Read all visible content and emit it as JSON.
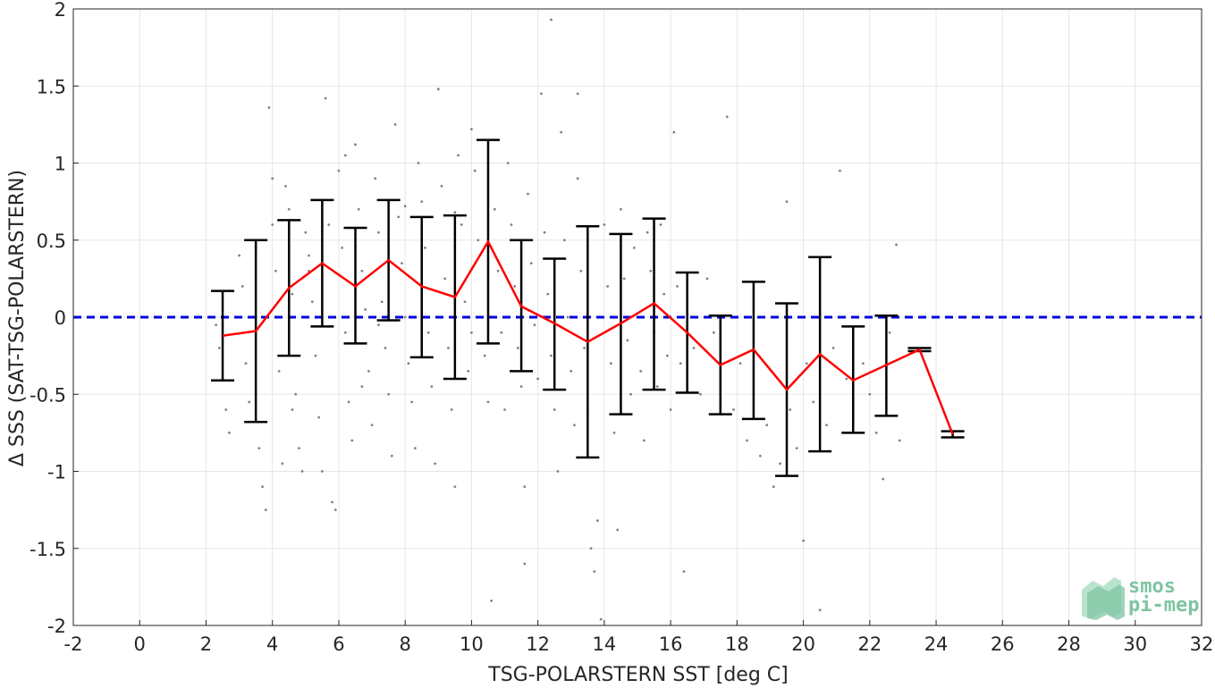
{
  "colors": {
    "scatter": "#808080",
    "mean_line": "#ff0000",
    "error_bar": "#000000",
    "zero_line": "#0000dd",
    "grid": "#e6e6e6",
    "logo_primary": "#7fc4a2",
    "logo_secondary": "#b9e3cd"
  },
  "logo": {
    "line1": "smos",
    "line2": "pi-mep"
  },
  "chart_data": {
    "type": "scatter",
    "title": "",
    "xlabel": "TSG-POLARSTERN SST [deg C]",
    "ylabel": "Δ SSS (SAT-TSG-POLARSTERN)",
    "xlim": [
      -2,
      32
    ],
    "ylim": [
      -2,
      2
    ],
    "xticks": [
      -2,
      0,
      2,
      4,
      6,
      8,
      10,
      12,
      14,
      16,
      18,
      20,
      22,
      24,
      26,
      28,
      30,
      32
    ],
    "yticks": [
      -2,
      -1.5,
      -1,
      -0.5,
      0,
      0.5,
      1,
      1.5,
      2
    ],
    "xtick_labels": [
      "-2",
      "0",
      "2",
      "4",
      "6",
      "8",
      "10",
      "12",
      "14",
      "16",
      "18",
      "20",
      "22",
      "24",
      "26",
      "28",
      "30",
      "32"
    ],
    "ytick_labels": [
      "-2",
      "-1.5",
      "-1",
      "-0.5",
      "0",
      "0.5",
      "1",
      "1.5",
      "2"
    ],
    "grid": true,
    "reference_line": {
      "y": 0,
      "style": "dashed"
    },
    "series": [
      {
        "kind": "binned_mean_with_std",
        "x": [
          2.5,
          3.5,
          4.5,
          5.5,
          6.5,
          7.5,
          8.5,
          9.5,
          10.5,
          11.5,
          12.5,
          13.5,
          14.5,
          15.5,
          16.5,
          17.5,
          18.5,
          19.5,
          20.5,
          21.5,
          22.5,
          23.5,
          24.5
        ],
        "mean": [
          -0.12,
          -0.09,
          0.19,
          0.35,
          0.2,
          0.37,
          0.2,
          0.13,
          0.49,
          0.07,
          -0.04,
          -0.16,
          -0.04,
          0.09,
          -0.1,
          -0.31,
          -0.21,
          -0.47,
          -0.24,
          -0.41,
          -0.31,
          -0.21,
          -0.76
        ],
        "upper": [
          0.17,
          0.5,
          0.63,
          0.76,
          0.58,
          0.76,
          0.65,
          0.66,
          1.15,
          0.5,
          0.38,
          0.59,
          0.54,
          0.64,
          0.29,
          0.01,
          0.23,
          0.09,
          0.39,
          -0.06,
          0.01,
          -0.2,
          -0.74
        ],
        "lower": [
          -0.41,
          -0.68,
          -0.25,
          -0.06,
          -0.17,
          -0.02,
          -0.26,
          -0.4,
          -0.17,
          -0.35,
          -0.47,
          -0.91,
          -0.63,
          -0.47,
          -0.49,
          -0.63,
          -0.66,
          -1.03,
          -0.87,
          -0.75,
          -0.64,
          -0.22,
          -0.78
        ]
      }
    ],
    "scatter_points": [
      [
        2.3,
        -0.05
      ],
      [
        2.4,
        -0.2
      ],
      [
        2.6,
        -0.6
      ],
      [
        2.7,
        -0.75
      ],
      [
        3.0,
        0.4
      ],
      [
        3.1,
        0.2
      ],
      [
        3.2,
        -0.3
      ],
      [
        3.3,
        -0.55
      ],
      [
        3.5,
        0.45
      ],
      [
        3.6,
        -0.85
      ],
      [
        3.7,
        -1.1
      ],
      [
        3.8,
        -1.25
      ],
      [
        3.9,
        1.36
      ],
      [
        4.0,
        0.9
      ],
      [
        4.0,
        0.6
      ],
      [
        4.1,
        0.3
      ],
      [
        4.2,
        -0.35
      ],
      [
        4.3,
        -0.95
      ],
      [
        4.4,
        0.85
      ],
      [
        4.5,
        0.7
      ],
      [
        4.6,
        0.15
      ],
      [
        4.7,
        -0.5
      ],
      [
        4.8,
        -0.85
      ],
      [
        4.9,
        -1.0
      ],
      [
        5.0,
        0.55
      ],
      [
        5.1,
        0.4
      ],
      [
        5.2,
        0.1
      ],
      [
        5.3,
        -0.25
      ],
      [
        5.4,
        -0.65
      ],
      [
        5.5,
        -1.0
      ],
      [
        5.6,
        1.42
      ],
      [
        5.7,
        0.6
      ],
      [
        5.8,
        -1.2
      ],
      [
        5.9,
        -1.25
      ],
      [
        6.0,
        0.95
      ],
      [
        6.1,
        0.45
      ],
      [
        6.2,
        -0.1
      ],
      [
        6.3,
        -0.55
      ],
      [
        6.4,
        -0.8
      ],
      [
        6.5,
        1.12
      ],
      [
        6.6,
        0.7
      ],
      [
        6.7,
        0.3
      ],
      [
        6.8,
        0.05
      ],
      [
        6.9,
        -0.35
      ],
      [
        7.0,
        -0.7
      ],
      [
        7.1,
        0.9
      ],
      [
        7.2,
        0.55
      ],
      [
        7.3,
        0.1
      ],
      [
        7.4,
        -0.2
      ],
      [
        7.5,
        -0.5
      ],
      [
        7.6,
        -0.9
      ],
      [
        7.7,
        1.25
      ],
      [
        7.8,
        0.65
      ],
      [
        7.9,
        0.35
      ],
      [
        8.0,
        0.0
      ],
      [
        8.1,
        -0.3
      ],
      [
        8.2,
        -0.55
      ],
      [
        8.3,
        -0.85
      ],
      [
        8.4,
        1.0
      ],
      [
        8.5,
        0.75
      ],
      [
        8.6,
        0.45
      ],
      [
        8.7,
        -0.1
      ],
      [
        8.8,
        -0.45
      ],
      [
        8.9,
        -0.95
      ],
      [
        9.0,
        1.48
      ],
      [
        9.1,
        0.85
      ],
      [
        9.2,
        0.25
      ],
      [
        9.3,
        -0.2
      ],
      [
        9.4,
        -0.6
      ],
      [
        9.5,
        -1.1
      ],
      [
        9.6,
        1.05
      ],
      [
        9.7,
        0.6
      ],
      [
        9.8,
        0.1
      ],
      [
        9.9,
        -0.35
      ],
      [
        10.0,
        1.22
      ],
      [
        10.1,
        0.95
      ],
      [
        10.2,
        0.5
      ],
      [
        10.3,
        0.0
      ],
      [
        10.4,
        -0.25
      ],
      [
        10.5,
        -0.55
      ],
      [
        10.6,
        -1.84
      ],
      [
        10.7,
        0.7
      ],
      [
        10.8,
        0.3
      ],
      [
        10.9,
        -0.1
      ],
      [
        11.0,
        -0.6
      ],
      [
        11.1,
        1.0
      ],
      [
        11.2,
        0.6
      ],
      [
        11.3,
        0.2
      ],
      [
        11.4,
        -0.2
      ],
      [
        11.5,
        -0.45
      ],
      [
        11.6,
        -1.1
      ],
      [
        11.7,
        0.8
      ],
      [
        11.8,
        0.35
      ],
      [
        11.9,
        -0.05
      ],
      [
        12.0,
        -0.4
      ],
      [
        12.1,
        1.45
      ],
      [
        12.2,
        0.55
      ],
      [
        12.3,
        0.15
      ],
      [
        12.4,
        -0.25
      ],
      [
        12.5,
        -0.6
      ],
      [
        12.6,
        -1.0
      ],
      [
        12.7,
        1.2
      ],
      [
        12.8,
        0.5
      ],
      [
        12.9,
        0.0
      ],
      [
        13.0,
        -0.35
      ],
      [
        13.1,
        -0.7
      ],
      [
        13.2,
        0.9
      ],
      [
        13.3,
        0.3
      ],
      [
        13.4,
        -0.2
      ],
      [
        13.5,
        -0.6
      ],
      [
        13.6,
        -1.5
      ],
      [
        13.7,
        -1.65
      ],
      [
        13.8,
        -1.32
      ],
      [
        13.9,
        -1.96
      ],
      [
        14.0,
        0.6
      ],
      [
        14.1,
        0.2
      ],
      [
        14.2,
        -0.3
      ],
      [
        14.3,
        -0.75
      ],
      [
        14.4,
        -1.38
      ],
      [
        14.5,
        0.7
      ],
      [
        14.6,
        0.25
      ],
      [
        14.7,
        -0.15
      ],
      [
        14.8,
        -0.5
      ],
      [
        14.9,
        0.45
      ],
      [
        15.0,
        0.0
      ],
      [
        15.1,
        -0.35
      ],
      [
        15.2,
        -0.8
      ],
      [
        15.3,
        0.55
      ],
      [
        15.4,
        0.3
      ],
      [
        15.5,
        -0.1
      ],
      [
        15.6,
        -0.45
      ],
      [
        15.7,
        0.6
      ],
      [
        15.8,
        0.15
      ],
      [
        15.9,
        -0.25
      ],
      [
        16.0,
        -0.6
      ],
      [
        16.1,
        1.2
      ],
      [
        16.2,
        0.2
      ],
      [
        16.3,
        -0.3
      ],
      [
        16.4,
        -1.65
      ],
      [
        16.5,
        0.1
      ],
      [
        16.7,
        -0.2
      ],
      [
        16.9,
        -0.5
      ],
      [
        17.1,
        0.25
      ],
      [
        17.3,
        -0.1
      ],
      [
        17.5,
        -0.45
      ],
      [
        17.7,
        1.3
      ],
      [
        17.9,
        -0.6
      ],
      [
        18.1,
        -0.3
      ],
      [
        18.3,
        -0.8
      ],
      [
        18.5,
        -0.5
      ],
      [
        18.7,
        -0.9
      ],
      [
        18.9,
        -0.7
      ],
      [
        19.1,
        -1.1
      ],
      [
        19.3,
        -0.95
      ],
      [
        19.5,
        0.75
      ],
      [
        19.6,
        -0.6
      ],
      [
        19.8,
        -0.85
      ],
      [
        20.0,
        -1.45
      ],
      [
        20.1,
        -0.3
      ],
      [
        20.3,
        -0.55
      ],
      [
        20.5,
        -1.9
      ],
      [
        20.7,
        -0.7
      ],
      [
        20.9,
        -0.2
      ],
      [
        21.1,
        0.95
      ],
      [
        21.3,
        -0.4
      ],
      [
        21.5,
        -0.6
      ],
      [
        21.8,
        -0.3
      ],
      [
        22.0,
        -0.5
      ],
      [
        22.2,
        -0.75
      ],
      [
        22.4,
        -1.05
      ],
      [
        22.6,
        -0.1
      ],
      [
        22.8,
        0.47
      ],
      [
        22.9,
        -0.8
      ],
      [
        12.4,
        1.93
      ],
      [
        13.2,
        1.45
      ],
      [
        11.6,
        -1.6
      ],
      [
        6.2,
        1.05
      ],
      [
        7.2,
        -0.05
      ],
      [
        8.0,
        0.72
      ],
      [
        9.5,
        0.68
      ],
      [
        5.1,
        0.3
      ],
      [
        10.0,
        -0.1
      ],
      [
        4.6,
        -0.6
      ],
      [
        6.7,
        -0.45
      ]
    ]
  }
}
